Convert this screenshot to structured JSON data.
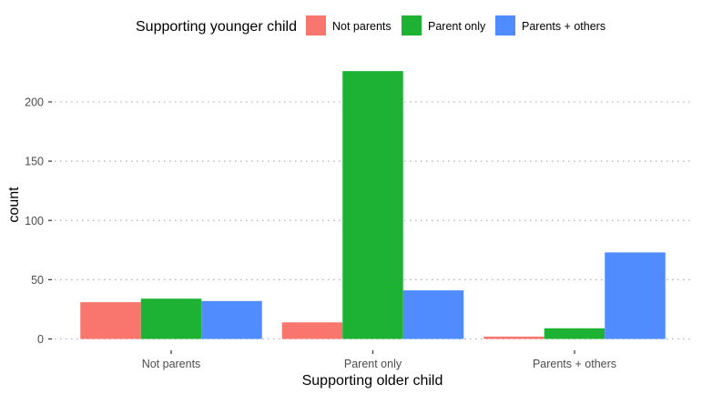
{
  "chart_data": {
    "type": "bar",
    "categories": [
      "Not parents",
      "Parent only",
      "Parents + others"
    ],
    "series": [
      {
        "name": "Not parents",
        "color": "#F8766D",
        "values": [
          31,
          14,
          2
        ]
      },
      {
        "name": "Parent only",
        "color": "#1DB233",
        "values": [
          34,
          226,
          9
        ]
      },
      {
        "name": "Parents + others",
        "color": "#518CFF",
        "values": [
          32,
          41,
          73
        ]
      }
    ],
    "xlabel": "Supporting older child",
    "ylabel": "count",
    "ylim": [
      0,
      237
    ],
    "yticks": [
      0,
      50,
      100,
      150,
      200
    ],
    "legend": {
      "title": "Supporting younger child",
      "position": "top"
    },
    "grid": "horizontal-dotted"
  }
}
